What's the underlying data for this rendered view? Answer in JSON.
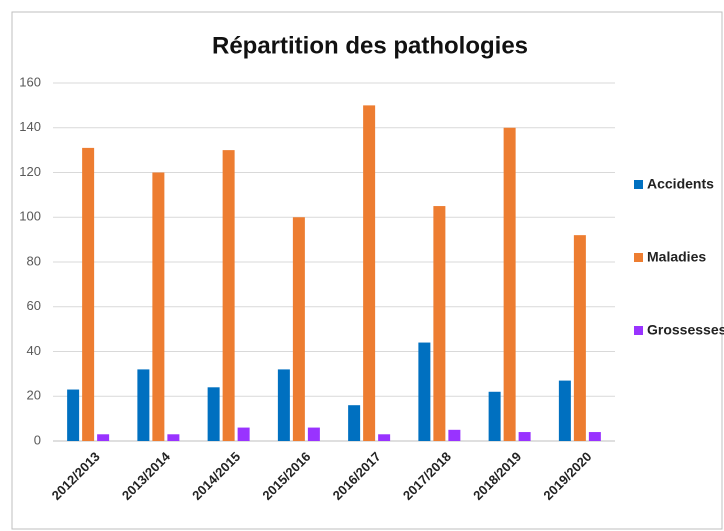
{
  "chart_data": {
    "type": "bar",
    "title": "Répartition des pathologies",
    "categories": [
      "2012/2013",
      "2013/2014",
      "2014/2015",
      "2015/2016",
      "2016/2017",
      "2017/2018",
      "2018/2019",
      "2019/2020"
    ],
    "series": [
      {
        "name": "Accidents",
        "color": "#0070c0",
        "values": [
          23,
          32,
          24,
          32,
          16,
          44,
          22,
          27
        ]
      },
      {
        "name": "Maladies",
        "color": "#ed7d31",
        "values": [
          131,
          120,
          130,
          100,
          150,
          105,
          140,
          92
        ]
      },
      {
        "name": "Grossesses",
        "color": "#9933ff",
        "values": [
          3,
          3,
          6,
          6,
          3,
          5,
          4,
          4
        ]
      }
    ],
    "ylim": [
      0,
      160
    ],
    "yticks": [
      0,
      20,
      40,
      60,
      80,
      100,
      120,
      140,
      160
    ],
    "grid": true,
    "legend": "right"
  }
}
